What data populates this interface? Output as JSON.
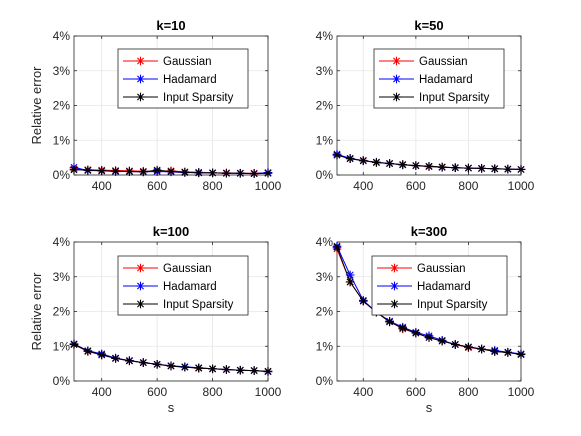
{
  "chart_data": [
    {
      "type": "line",
      "title": "k=10",
      "xlabel": "",
      "ylabel": "Relative error",
      "xlim": [
        300,
        1000
      ],
      "ylim": [
        0,
        4
      ],
      "xticks": [
        "400",
        "600",
        "800",
        "1000"
      ],
      "yticks": [
        "0%",
        "1%",
        "2%",
        "3%",
        "4%"
      ],
      "grid": true,
      "legend_position": "top-center",
      "x": [
        300,
        350,
        400,
        450,
        500,
        550,
        600,
        650,
        700,
        750,
        800,
        850,
        900,
        950,
        1000
      ],
      "series": [
        {
          "name": "Gaussian",
          "color": "#ff0000",
          "values": [
            0.17,
            0.15,
            0.14,
            0.13,
            0.12,
            0.11,
            0.1,
            0.12,
            0.09,
            0.08,
            0.06,
            0.06,
            0.05,
            0.05,
            0.06
          ]
        },
        {
          "name": "Hadamard",
          "color": "#0000ff",
          "values": [
            0.22,
            0.13,
            0.12,
            0.1,
            0.1,
            0.09,
            0.1,
            0.09,
            0.07,
            0.07,
            0.06,
            0.05,
            0.05,
            0.04,
            0.07
          ]
        },
        {
          "name": "Input Sparsity",
          "color": "#000000",
          "values": [
            0.15,
            0.14,
            0.12,
            0.11,
            0.1,
            0.09,
            0.14,
            0.1,
            0.08,
            0.06,
            0.06,
            0.05,
            0.05,
            0.04,
            0.05
          ]
        }
      ]
    },
    {
      "type": "line",
      "title": "k=50",
      "xlabel": "",
      "ylabel": "",
      "xlim": [
        300,
        1000
      ],
      "ylim": [
        0,
        4
      ],
      "xticks": [
        "400",
        "600",
        "800",
        "1000"
      ],
      "yticks": [
        "0%",
        "1%",
        "2%",
        "3%",
        "4%"
      ],
      "grid": true,
      "legend_position": "top-center",
      "x": [
        300,
        350,
        400,
        450,
        500,
        550,
        600,
        650,
        700,
        750,
        800,
        850,
        900,
        950,
        1000
      ],
      "series": [
        {
          "name": "Gaussian",
          "color": "#ff0000",
          "values": [
            0.58,
            0.47,
            0.42,
            0.36,
            0.33,
            0.3,
            0.27,
            0.24,
            0.23,
            0.21,
            0.2,
            0.19,
            0.18,
            0.17,
            0.16
          ]
        },
        {
          "name": "Hadamard",
          "color": "#0000ff",
          "values": [
            0.6,
            0.48,
            0.41,
            0.37,
            0.33,
            0.29,
            0.27,
            0.25,
            0.22,
            0.21,
            0.2,
            0.19,
            0.18,
            0.17,
            0.16
          ]
        },
        {
          "name": "Input Sparsity",
          "color": "#000000",
          "values": [
            0.57,
            0.47,
            0.41,
            0.36,
            0.33,
            0.3,
            0.27,
            0.25,
            0.23,
            0.21,
            0.2,
            0.19,
            0.18,
            0.17,
            0.16
          ]
        }
      ]
    },
    {
      "type": "line",
      "title": "k=100",
      "xlabel": "s",
      "ylabel": "Relative error",
      "xlim": [
        300,
        1000
      ],
      "ylim": [
        0,
        4
      ],
      "xticks": [
        "400",
        "600",
        "800",
        "1000"
      ],
      "yticks": [
        "0%",
        "1%",
        "2%",
        "3%",
        "4%"
      ],
      "grid": true,
      "legend_position": "top-center",
      "x": [
        300,
        350,
        400,
        450,
        500,
        550,
        600,
        650,
        700,
        750,
        800,
        850,
        900,
        950,
        1000
      ],
      "series": [
        {
          "name": "Gaussian",
          "color": "#ff0000",
          "values": [
            1.05,
            0.85,
            0.75,
            0.65,
            0.58,
            0.53,
            0.48,
            0.43,
            0.4,
            0.37,
            0.35,
            0.33,
            0.31,
            0.3,
            0.27
          ]
        },
        {
          "name": "Hadamard",
          "color": "#0000ff",
          "values": [
            1.07,
            0.87,
            0.78,
            0.66,
            0.59,
            0.53,
            0.48,
            0.44,
            0.41,
            0.38,
            0.35,
            0.33,
            0.31,
            0.3,
            0.27
          ]
        },
        {
          "name": "Input Sparsity",
          "color": "#000000",
          "values": [
            1.05,
            0.86,
            0.75,
            0.65,
            0.58,
            0.53,
            0.48,
            0.43,
            0.4,
            0.37,
            0.35,
            0.33,
            0.31,
            0.3,
            0.28
          ]
        }
      ]
    },
    {
      "type": "line",
      "title": "k=300",
      "xlabel": "s",
      "ylabel": "",
      "xlim": [
        300,
        1000
      ],
      "ylim": [
        0,
        4
      ],
      "xticks": [
        "400",
        "600",
        "800",
        "1000"
      ],
      "yticks": [
        "0%",
        "1%",
        "2%",
        "3%",
        "4%"
      ],
      "grid": true,
      "legend_position": "top-right",
      "x": [
        300,
        350,
        400,
        450,
        500,
        550,
        600,
        650,
        700,
        750,
        800,
        850,
        900,
        950,
        1000
      ],
      "series": [
        {
          "name": "Gaussian",
          "color": "#ff0000",
          "values": [
            3.8,
            2.85,
            2.3,
            1.98,
            1.72,
            1.5,
            1.38,
            1.25,
            1.15,
            1.05,
            0.96,
            0.92,
            0.85,
            0.82,
            0.77
          ]
        },
        {
          "name": "Hadamard",
          "color": "#0000ff",
          "values": [
            3.88,
            3.05,
            2.32,
            1.98,
            1.72,
            1.55,
            1.4,
            1.3,
            1.17,
            1.05,
            0.98,
            0.92,
            0.88,
            0.83,
            0.78
          ]
        },
        {
          "name": "Input Sparsity",
          "color": "#000000",
          "values": [
            3.85,
            2.85,
            2.3,
            1.98,
            1.7,
            1.52,
            1.38,
            1.25,
            1.15,
            1.05,
            0.98,
            0.92,
            0.85,
            0.82,
            0.76
          ]
        }
      ]
    }
  ]
}
